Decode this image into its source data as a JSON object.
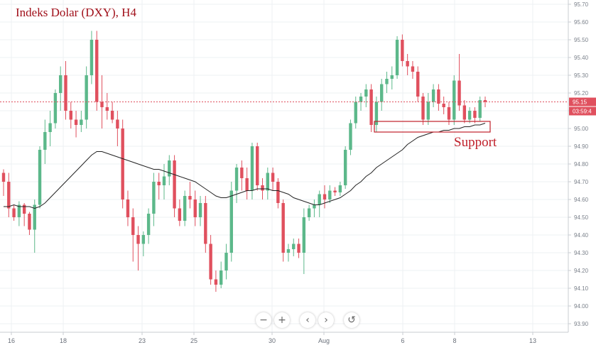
{
  "title": "Indeks Dolar (DXY), H4",
  "annotation": "Support",
  "controls": {
    "zoom_out": "−",
    "zoom_in": "+",
    "scroll_left": "‹",
    "scroll_right": "›",
    "reset": "↺"
  },
  "chart_data": {
    "type": "candlestick",
    "title": "Indeks Dolar (DXY), H4",
    "ylim": [
      93.85,
      95.75
    ],
    "y_ticks": [
      "95.70",
      "95.60",
      "95.50",
      "95.40",
      "95.30",
      "95.20",
      "95.10",
      "95.00",
      "94.90",
      "94.80",
      "94.70",
      "94.60",
      "94.50",
      "94.40",
      "94.30",
      "94.20",
      "94.10",
      "94.00",
      "93.90"
    ],
    "x_ticks": [
      "16",
      "18",
      "23",
      "25",
      "30",
      "Aug",
      "6",
      "8",
      "13"
    ],
    "last_price_label": "95.15",
    "countdown_label": "03:59:4",
    "bull_color": "#5cb88a",
    "bear_color": "#e0505e",
    "candles": [
      [
        94.75,
        94.77,
        94.62,
        94.7
      ],
      [
        94.7,
        94.75,
        94.5,
        94.55
      ],
      [
        94.55,
        94.57,
        94.48,
        94.5
      ],
      [
        94.5,
        94.59,
        94.45,
        94.57
      ],
      [
        94.57,
        94.58,
        94.45,
        94.52
      ],
      [
        94.52,
        94.53,
        94.4,
        94.43
      ],
      [
        94.43,
        94.6,
        94.3,
        94.57
      ],
      [
        94.57,
        94.9,
        94.55,
        94.88
      ],
      [
        94.88,
        95.05,
        94.8,
        94.98
      ],
      [
        94.98,
        95.1,
        94.9,
        95.03
      ],
      [
        95.03,
        95.22,
        95.0,
        95.2
      ],
      [
        95.2,
        95.35,
        95.1,
        95.3
      ],
      [
        95.3,
        95.38,
        95.05,
        95.1
      ],
      [
        95.1,
        95.15,
        95.0,
        95.05
      ],
      [
        95.05,
        95.1,
        94.95,
        95.02
      ],
      [
        95.02,
        95.1,
        94.98,
        95.05
      ],
      [
        95.05,
        95.35,
        95.0,
        95.3
      ],
      [
        95.3,
        95.55,
        95.25,
        95.5
      ],
      [
        95.5,
        95.55,
        95.1,
        95.15
      ],
      [
        95.15,
        95.3,
        95.0,
        95.12
      ],
      [
        95.12,
        95.2,
        95.05,
        95.1
      ],
      [
        95.1,
        95.15,
        95.03,
        95.05
      ],
      [
        95.05,
        95.1,
        94.9,
        95.0
      ],
      [
        95.0,
        95.05,
        94.55,
        94.6
      ],
      [
        94.6,
        94.65,
        94.45,
        94.5
      ],
      [
        94.5,
        94.55,
        94.25,
        94.4
      ],
      [
        94.4,
        94.45,
        94.2,
        94.35
      ],
      [
        94.35,
        94.42,
        94.28,
        94.4
      ],
      [
        94.4,
        94.55,
        94.35,
        94.52
      ],
      [
        94.52,
        94.75,
        94.45,
        94.7
      ],
      [
        94.7,
        94.75,
        94.6,
        94.68
      ],
      [
        94.68,
        94.8,
        94.6,
        94.73
      ],
      [
        94.73,
        94.85,
        94.68,
        94.82
      ],
      [
        94.82,
        94.85,
        94.5,
        94.55
      ],
      [
        94.55,
        94.6,
        94.45,
        94.48
      ],
      [
        94.48,
        94.65,
        94.45,
        94.62
      ],
      [
        94.62,
        94.7,
        94.55,
        94.6
      ],
      [
        94.6,
        94.65,
        94.45,
        94.5
      ],
      [
        94.5,
        94.62,
        94.45,
        94.58
      ],
      [
        94.58,
        94.62,
        94.3,
        94.35
      ],
      [
        94.35,
        94.4,
        94.12,
        94.15
      ],
      [
        94.15,
        94.2,
        94.08,
        94.12
      ],
      [
        94.12,
        94.25,
        94.1,
        94.2
      ],
      [
        94.2,
        94.35,
        94.15,
        94.3
      ],
      [
        94.3,
        94.7,
        94.25,
        94.65
      ],
      [
        94.65,
        94.8,
        94.58,
        94.78
      ],
      [
        94.78,
        94.82,
        94.65,
        94.72
      ],
      [
        94.72,
        94.78,
        94.6,
        94.65
      ],
      [
        94.65,
        94.92,
        94.6,
        94.9
      ],
      [
        94.9,
        94.92,
        94.65,
        94.68
      ],
      [
        94.68,
        94.72,
        94.6,
        94.65
      ],
      [
        94.65,
        94.78,
        94.6,
        94.75
      ],
      [
        94.75,
        94.78,
        94.65,
        94.7
      ],
      [
        94.7,
        94.72,
        94.55,
        94.58
      ],
      [
        94.58,
        94.6,
        94.25,
        94.3
      ],
      [
        94.3,
        94.35,
        94.25,
        94.32
      ],
      [
        94.32,
        94.38,
        94.28,
        94.35
      ],
      [
        94.35,
        94.38,
        94.27,
        94.3
      ],
      [
        94.3,
        94.55,
        94.18,
        94.5
      ],
      [
        94.5,
        94.57,
        94.48,
        94.55
      ],
      [
        94.55,
        94.6,
        94.5,
        94.57
      ],
      [
        94.57,
        94.65,
        94.5,
        94.63
      ],
      [
        94.63,
        94.68,
        94.55,
        94.6
      ],
      [
        94.6,
        94.68,
        94.58,
        94.65
      ],
      [
        94.65,
        94.67,
        94.62,
        94.64
      ],
      [
        94.64,
        94.7,
        94.62,
        94.68
      ],
      [
        94.68,
        94.9,
        94.66,
        94.88
      ],
      [
        94.88,
        95.05,
        94.85,
        95.03
      ],
      [
        95.03,
        95.18,
        95.0,
        95.15
      ],
      [
        95.15,
        95.2,
        95.1,
        95.18
      ],
      [
        95.18,
        95.25,
        95.12,
        95.22
      ],
      [
        95.22,
        95.25,
        94.98,
        95.02
      ],
      [
        95.02,
        95.18,
        94.98,
        95.15
      ],
      [
        95.15,
        95.28,
        95.1,
        95.25
      ],
      [
        95.25,
        95.32,
        95.2,
        95.28
      ],
      [
        95.28,
        95.35,
        95.22,
        95.3
      ],
      [
        95.3,
        95.52,
        95.28,
        95.5
      ],
      [
        95.5,
        95.53,
        95.35,
        95.38
      ],
      [
        95.38,
        95.42,
        95.3,
        95.35
      ],
      [
        95.35,
        95.38,
        95.28,
        95.32
      ],
      [
        95.32,
        95.35,
        95.15,
        95.18
      ],
      [
        95.18,
        95.2,
        95.02,
        95.05
      ],
      [
        95.05,
        95.2,
        95.02,
        95.15
      ],
      [
        95.15,
        95.25,
        95.12,
        95.22
      ],
      [
        95.22,
        95.25,
        95.1,
        95.14
      ],
      [
        95.14,
        95.18,
        95.08,
        95.12
      ],
      [
        95.12,
        95.15,
        95.02,
        95.05
      ],
      [
        95.05,
        95.3,
        95.02,
        95.27
      ],
      [
        95.27,
        95.42,
        95.1,
        95.13
      ],
      [
        95.13,
        95.16,
        95.03,
        95.05
      ],
      [
        95.05,
        95.12,
        95.03,
        95.1
      ],
      [
        95.1,
        95.12,
        95.03,
        95.06
      ],
      [
        95.06,
        95.18,
        95.04,
        95.16
      ],
      [
        95.16,
        95.18,
        95.12,
        95.15
      ]
    ],
    "moving_average": [
      94.56,
      94.56,
      94.57,
      94.56,
      94.56,
      94.56,
      94.55,
      94.56,
      94.58,
      94.61,
      94.64,
      94.67,
      94.7,
      94.73,
      94.76,
      94.79,
      94.82,
      94.85,
      94.87,
      94.87,
      94.86,
      94.85,
      94.84,
      94.83,
      94.82,
      94.81,
      94.8,
      94.79,
      94.78,
      94.77,
      94.77,
      94.76,
      94.75,
      94.74,
      94.73,
      94.72,
      94.71,
      94.7,
      94.68,
      94.66,
      94.64,
      94.62,
      94.61,
      94.61,
      94.62,
      94.63,
      94.64,
      94.65,
      94.65,
      94.66,
      94.66,
      94.66,
      94.65,
      94.65,
      94.64,
      94.63,
      94.61,
      94.6,
      94.59,
      94.58,
      94.57,
      94.57,
      94.58,
      94.59,
      94.6,
      94.61,
      94.63,
      94.65,
      94.68,
      94.7,
      94.73,
      94.75,
      94.78,
      94.8,
      94.82,
      94.84,
      94.86,
      94.88,
      94.91,
      94.93,
      94.95,
      94.96,
      94.97,
      94.98,
      94.98,
      94.99,
      94.99,
      95.0,
      95.0,
      95.01,
      95.01,
      95.02,
      95.02,
      95.03
    ],
    "support_zone": [
      94.98,
      95.04
    ]
  }
}
